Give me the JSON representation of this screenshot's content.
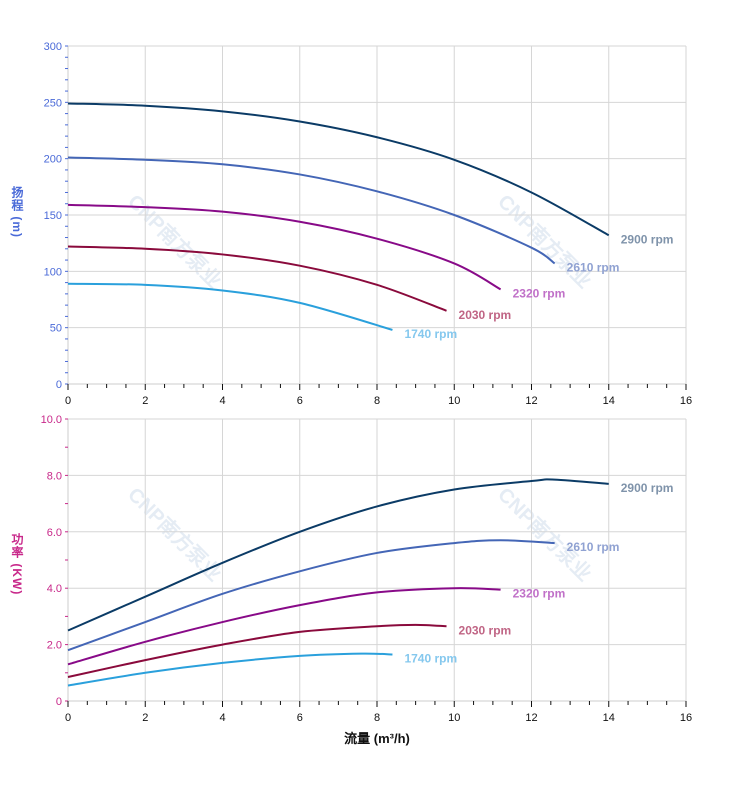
{
  "watermark": "CNP南方泵业",
  "chart_data": [
    {
      "type": "line",
      "ylabel": "扬程 (m)",
      "ylabel_color": "#4a6ad8",
      "ylim": [
        0,
        300
      ],
      "yticks": [
        0,
        50,
        100,
        150,
        200,
        250,
        300
      ],
      "ytick_labels": [
        "0",
        "50",
        "100",
        "150",
        "200",
        "250",
        "300"
      ],
      "xlim": [
        0,
        16
      ],
      "xticks": [
        0,
        2,
        4,
        6,
        8,
        10,
        12,
        14,
        16
      ],
      "grid": true,
      "series": [
        {
          "name": "2900 rpm",
          "color": "#0b3b66",
          "label_color": "#7f93aa",
          "x": [
            0,
            2,
            4,
            6,
            8,
            10,
            12,
            14
          ],
          "y": [
            249,
            247,
            242,
            233,
            219,
            199,
            170,
            132
          ]
        },
        {
          "name": "2610 rpm",
          "color": "#4466b6",
          "label_color": "#90a2d2",
          "x": [
            0,
            2,
            4,
            6,
            8,
            10,
            12,
            12.6
          ],
          "y": [
            201,
            199,
            195,
            186,
            171,
            150,
            121,
            107
          ]
        },
        {
          "name": "2320 rpm",
          "color": "#880a88",
          "label_color": "#c070c8",
          "x": [
            0,
            2,
            4,
            6,
            8,
            10,
            11.2
          ],
          "y": [
            159,
            157,
            153,
            144,
            129,
            107,
            84
          ]
        },
        {
          "name": "2030 rpm",
          "color": "#8a0a3c",
          "label_color": "#c06585",
          "x": [
            0,
            2,
            4,
            6,
            8,
            9.8
          ],
          "y": [
            122,
            120,
            115,
            105,
            88,
            65
          ]
        },
        {
          "name": "1740 rpm",
          "color": "#2aa0dc",
          "label_color": "#85c8ee",
          "x": [
            0,
            2,
            4,
            6,
            8.4
          ],
          "y": [
            89,
            88,
            83,
            72,
            48
          ]
        }
      ]
    },
    {
      "type": "line",
      "ylabel": "功率 (KW)",
      "ylabel_color": "#c8288a",
      "xlabel": "流量 (m³/h)",
      "ylim": [
        0,
        10
      ],
      "yticks": [
        0,
        2,
        4,
        6,
        8,
        10
      ],
      "ytick_labels": [
        "0",
        "2.0",
        "4.0",
        "6.0",
        "8.0",
        "10.0"
      ],
      "xlim": [
        0,
        16
      ],
      "xticks": [
        0,
        2,
        4,
        6,
        8,
        10,
        12,
        14,
        16
      ],
      "grid": true,
      "series": [
        {
          "name": "2900 rpm",
          "color": "#0b3b66",
          "label_color": "#7f93aa",
          "x": [
            0,
            2,
            4,
            6,
            8,
            10,
            12,
            12.6,
            14
          ],
          "y": [
            2.5,
            3.7,
            4.9,
            6.0,
            6.9,
            7.5,
            7.8,
            7.85,
            7.7
          ]
        },
        {
          "name": "2610 rpm",
          "color": "#4466b6",
          "label_color": "#90a2d2",
          "x": [
            0,
            2,
            4,
            6,
            8,
            10,
            11.2,
            12.6
          ],
          "y": [
            1.8,
            2.8,
            3.8,
            4.6,
            5.25,
            5.6,
            5.7,
            5.6
          ]
        },
        {
          "name": "2320 rpm",
          "color": "#880a88",
          "label_color": "#c070c8",
          "x": [
            0,
            2,
            4,
            6,
            8,
            10,
            11.2
          ],
          "y": [
            1.3,
            2.1,
            2.8,
            3.4,
            3.85,
            4.0,
            3.95
          ]
        },
        {
          "name": "2030 rpm",
          "color": "#8a0a3c",
          "label_color": "#c06585",
          "x": [
            0,
            2,
            4,
            6,
            8,
            9,
            9.8
          ],
          "y": [
            0.85,
            1.45,
            2.0,
            2.45,
            2.65,
            2.7,
            2.65
          ]
        },
        {
          "name": "1740 rpm",
          "color": "#2aa0dc",
          "label_color": "#85c8ee",
          "x": [
            0,
            2,
            4,
            6,
            7.6,
            8.4
          ],
          "y": [
            0.55,
            1.0,
            1.35,
            1.6,
            1.68,
            1.65
          ]
        }
      ]
    }
  ]
}
